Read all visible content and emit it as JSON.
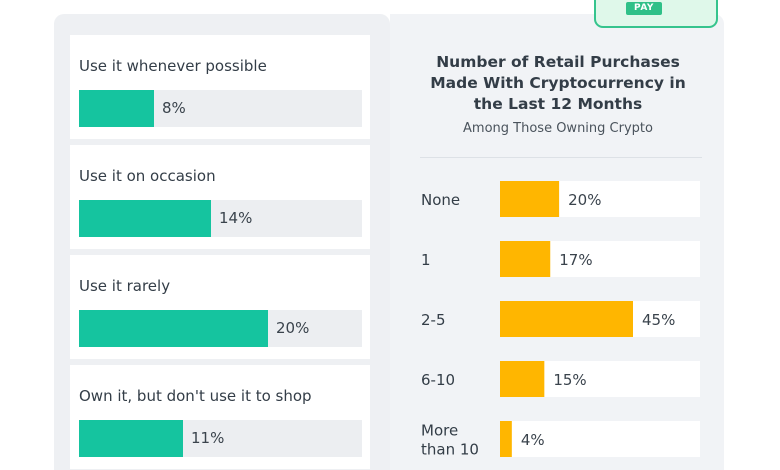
{
  "left_list": {
    "items": [
      {
        "label": "Use it whenever possible",
        "value": "8%",
        "fraction": 0.08
      },
      {
        "label": "Use it on occasion",
        "value": "14%",
        "fraction": 0.14
      },
      {
        "label": "Use it rarely",
        "value": "20%",
        "fraction": 0.2
      },
      {
        "label": "Own it, but don't use it to shop",
        "value": "11%",
        "fraction": 0.11
      }
    ],
    "bar_color": "#15c49f"
  },
  "badge": {
    "label": "PAY"
  },
  "chart_data": {
    "type": "bar",
    "orientation": "horizontal",
    "title": "Number of Retail Purchases Made With Cryptocurrency in the Last 12 Months",
    "title_lines": [
      "Number of Retail Purchases",
      "Made With Cryptocurrency in",
      "the Last 12 Months"
    ],
    "subtitle": "Among Those Owning Crypto",
    "categories": [
      "None",
      "1",
      "2-5",
      "6-10",
      "More than 10"
    ],
    "category_lines": [
      [
        "None"
      ],
      [
        "1"
      ],
      [
        "2-5"
      ],
      [
        "6-10"
      ],
      [
        "More",
        "than 10"
      ]
    ],
    "values": [
      20,
      17,
      45,
      15,
      4
    ],
    "value_labels": [
      "20%",
      "17%",
      "45%",
      "15%",
      "4%"
    ],
    "xlim": [
      0,
      100
    ],
    "bar_color": "#ffb600",
    "track_color": "#ffffff",
    "grid": false
  }
}
